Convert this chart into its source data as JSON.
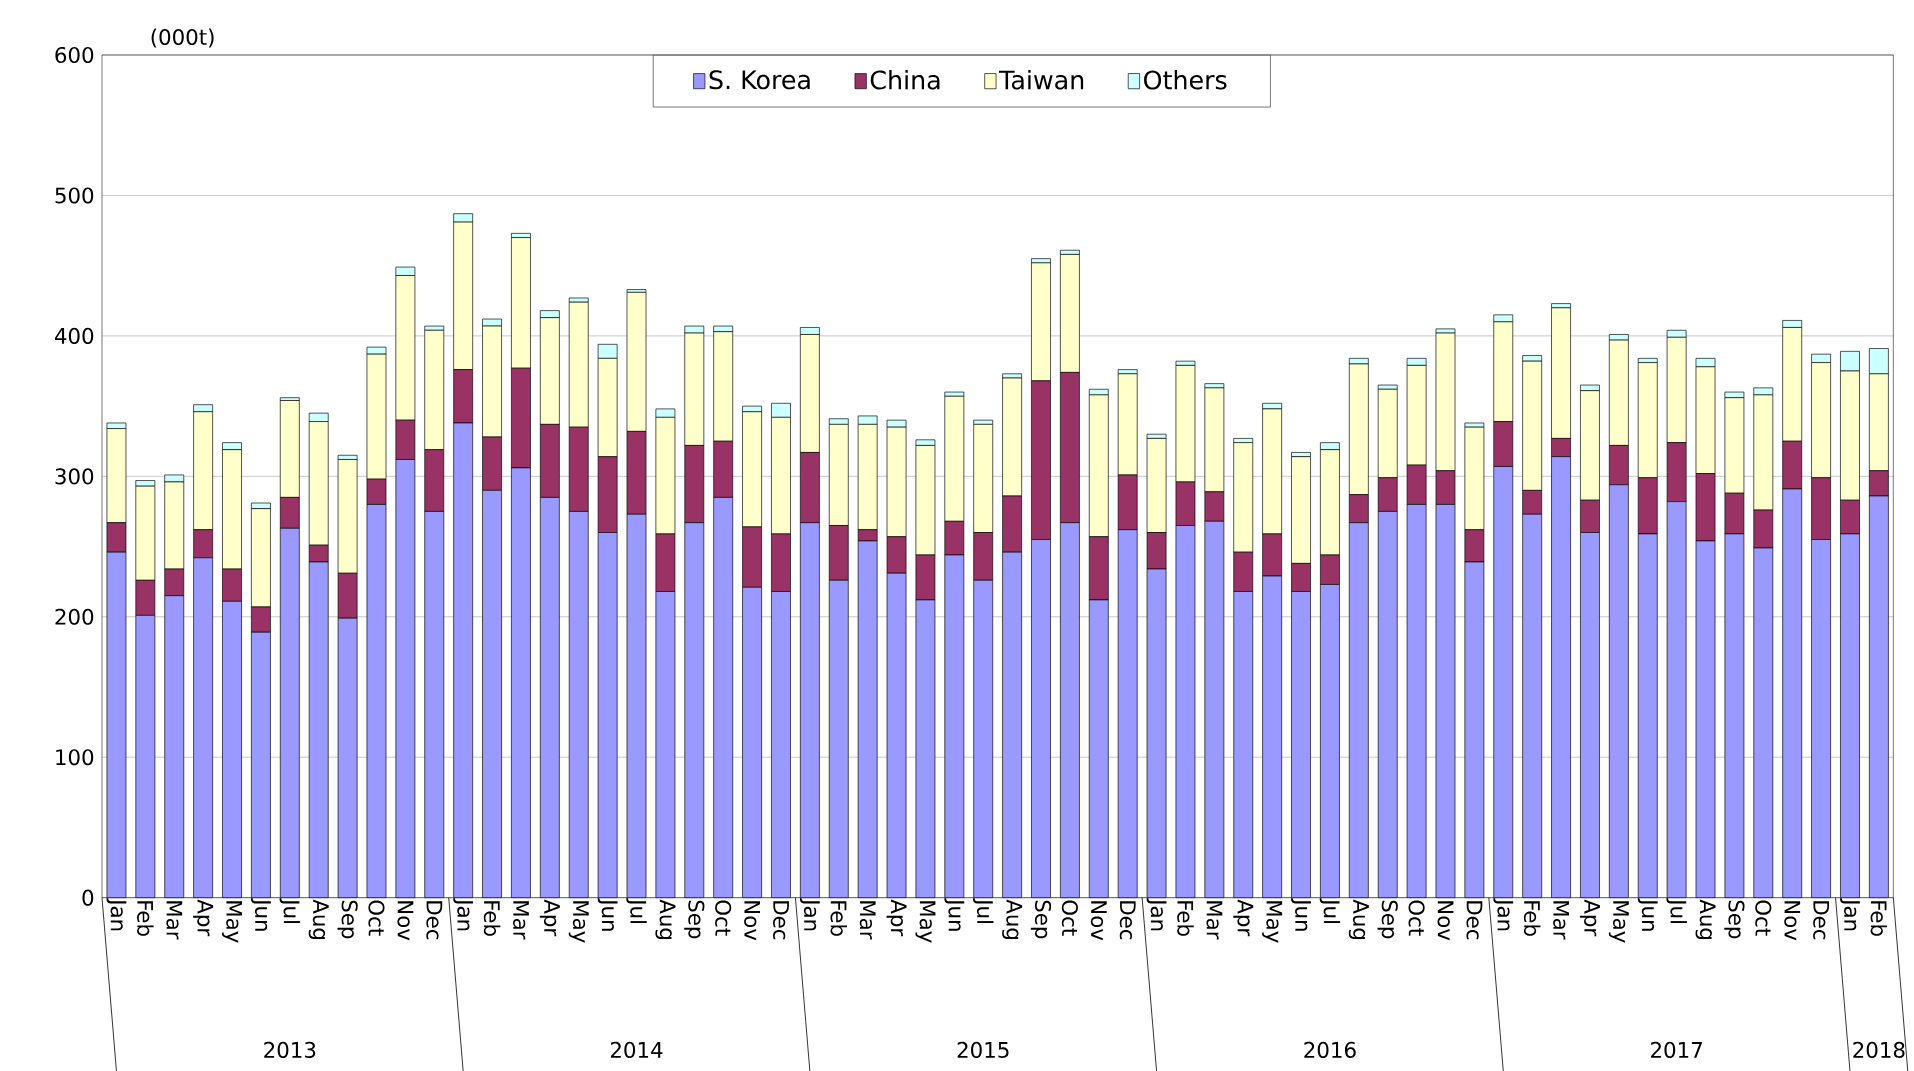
{
  "chart_data": {
    "type": "bar",
    "stacked": true,
    "ylabel": "(000t)",
    "categories": [
      "Jan",
      "Feb",
      "Mar",
      "Apr",
      "May",
      "Jun",
      "Jul",
      "Aug",
      "Sep",
      "Oct",
      "Nov",
      "Dec",
      "Jan",
      "Feb",
      "Mar",
      "Apr",
      "May",
      "Jun",
      "Jul",
      "Aug",
      "Sep",
      "Oct",
      "Nov",
      "Dec",
      "Jan",
      "Feb",
      "Mar",
      "Apr",
      "May",
      "Jun",
      "Jul",
      "Aug",
      "Sep",
      "Oct",
      "Nov",
      "Dec",
      "Jan",
      "Feb",
      "Mar",
      "Apr",
      "May",
      "Jun",
      "Jul",
      "Aug",
      "Sep",
      "Oct",
      "Nov",
      "Dec",
      "Jan",
      "Feb",
      "Mar",
      "Apr",
      "May",
      "Jun",
      "Jul",
      "Aug",
      "Sep",
      "Oct",
      "Nov",
      "Dec",
      "Jan",
      "Feb"
    ],
    "series": [
      {
        "name": "S. Korea",
        "color": "#9999ff",
        "values": [
          246,
          201,
          215,
          242,
          211,
          189,
          263,
          239,
          199,
          280,
          312,
          275,
          338,
          290,
          306,
          285,
          275,
          260,
          273,
          218,
          267,
          285,
          221,
          218,
          267,
          226,
          254,
          231,
          212,
          244,
          226,
          246,
          255,
          267,
          212,
          262,
          234,
          265,
          268,
          218,
          229,
          218,
          223,
          267,
          275,
          280,
          280,
          239,
          307,
          273,
          314,
          260,
          294,
          259,
          282,
          254,
          259,
          249,
          291,
          255,
          259,
          286
        ]
      },
      {
        "name": "China",
        "color": "#993366",
        "values": [
          21,
          25,
          19,
          20,
          23,
          18,
          22,
          12,
          32,
          18,
          28,
          44,
          38,
          38,
          71,
          52,
          60,
          54,
          59,
          41,
          55,
          40,
          43,
          41,
          50,
          39,
          8,
          26,
          32,
          24,
          34,
          40,
          113,
          107,
          45,
          39,
          26,
          31,
          21,
          28,
          30,
          20,
          21,
          20,
          24,
          28,
          24,
          23,
          32,
          17,
          13,
          23,
          28,
          40,
          42,
          48,
          29,
          27,
          34,
          44,
          24,
          18
        ]
      },
      {
        "name": "Taiwan",
        "color": "#ffffcc",
        "values": [
          67,
          67,
          62,
          84,
          85,
          70,
          69,
          88,
          81,
          89,
          103,
          85,
          105,
          79,
          93,
          76,
          89,
          70,
          99,
          83,
          80,
          78,
          82,
          83,
          84,
          72,
          75,
          78,
          78,
          89,
          77,
          84,
          84,
          84,
          101,
          72,
          67,
          83,
          74,
          78,
          89,
          76,
          75,
          93,
          63,
          71,
          98,
          73,
          71,
          92,
          93,
          78,
          75,
          82,
          75,
          76,
          68,
          82,
          81,
          82,
          92,
          69
        ]
      },
      {
        "name": "Others",
        "color": "#ccffff",
        "values": [
          4,
          4,
          5,
          5,
          5,
          4,
          2,
          6,
          3,
          5,
          6,
          3,
          6,
          5,
          3,
          5,
          3,
          10,
          2,
          6,
          5,
          4,
          4,
          10,
          5,
          4,
          6,
          5,
          4,
          3,
          3,
          3,
          3,
          3,
          4,
          3,
          3,
          3,
          3,
          3,
          4,
          3,
          5,
          4,
          3,
          5,
          3,
          3,
          5,
          4,
          3,
          4,
          4,
          3,
          5,
          6,
          4,
          5,
          5,
          6,
          14,
          18
        ]
      }
    ],
    "ylim": [
      0,
      600
    ],
    "yticks": [
      0,
      100,
      200,
      300,
      400,
      500,
      600
    ],
    "grid": "y",
    "legend": "top",
    "annotations": [
      "2013",
      "2014",
      "2015",
      "2016",
      "2017",
      "2018"
    ]
  }
}
